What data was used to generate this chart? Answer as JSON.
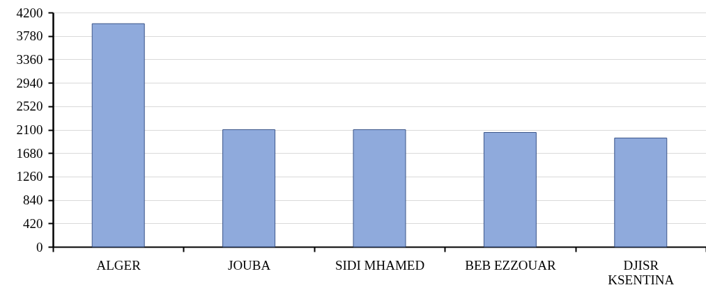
{
  "chart_data": {
    "type": "bar",
    "categories": [
      "ALGER",
      "JOUBA",
      "SIDI MHAMED",
      "BEB EZZOUAR",
      "DJISR KSENTINA"
    ],
    "values": [
      4000,
      2100,
      2100,
      2050,
      1950
    ],
    "color": "#8faadc",
    "ylim": [
      0,
      4200
    ],
    "yticks": [
      0,
      420,
      840,
      1260,
      1680,
      2100,
      2520,
      2940,
      3360,
      3780,
      4200
    ],
    "grid": "y"
  }
}
